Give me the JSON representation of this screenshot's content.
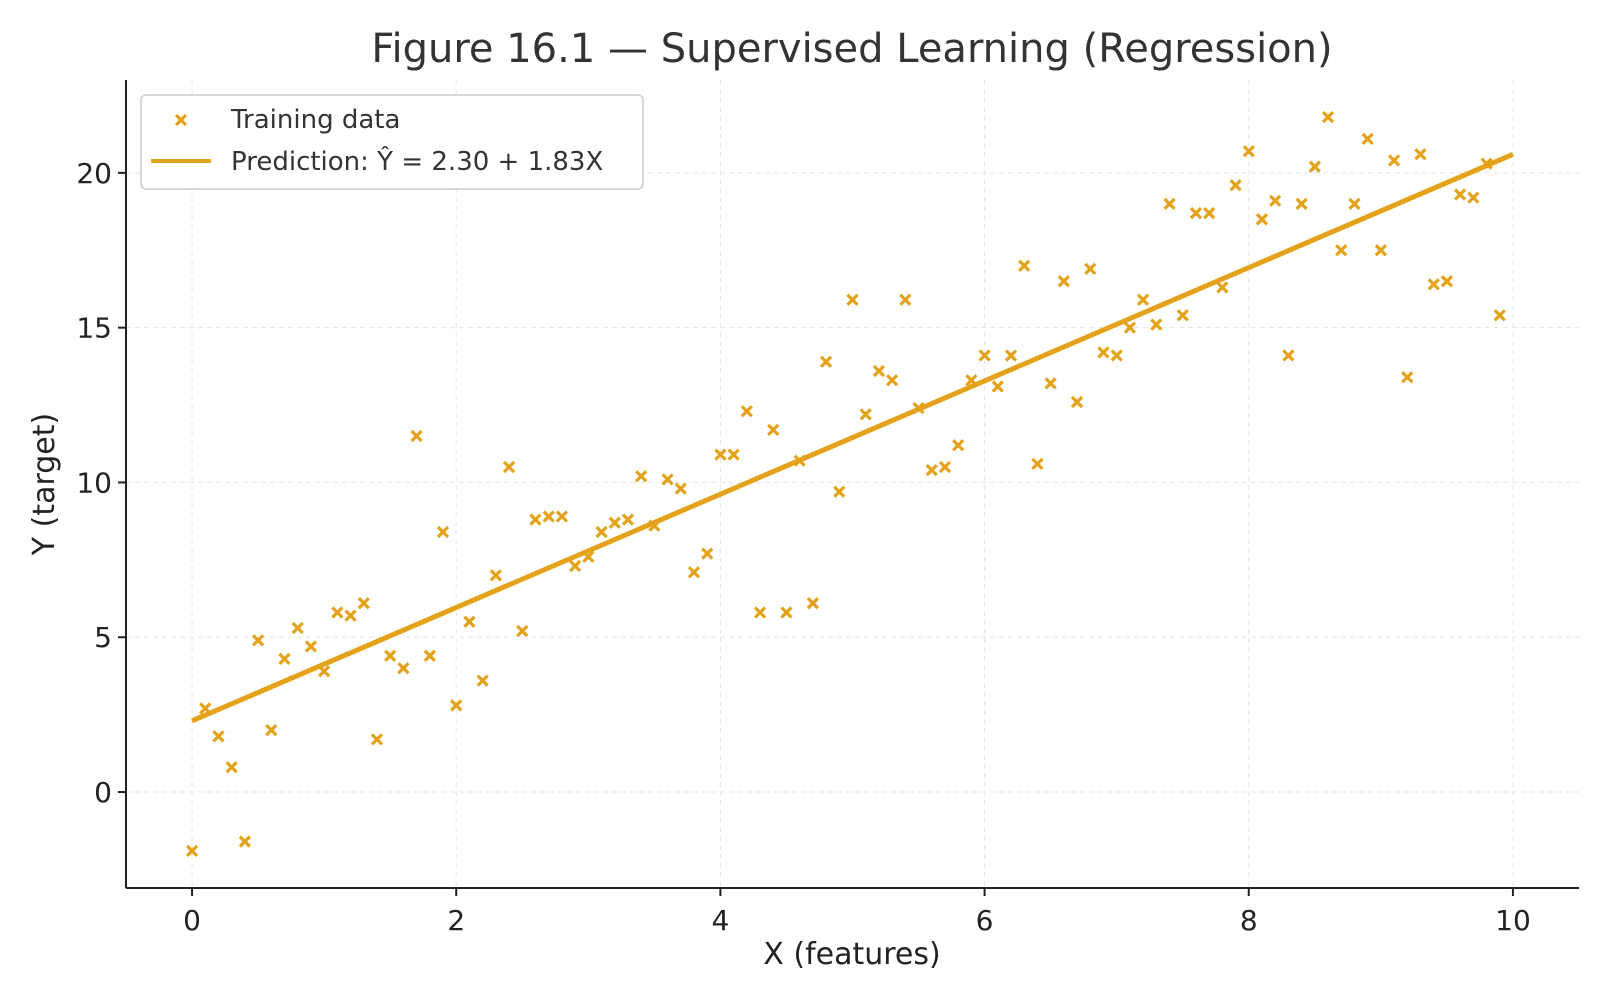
{
  "chart_data": {
    "type": "scatter",
    "title": "Figure 16.1 — Supervised Learning (Regression)",
    "xlabel": "X (features)",
    "ylabel": "Y (target)",
    "xlim": [
      -0.5,
      10.5
    ],
    "ylim": [
      -3.1,
      23
    ],
    "xticks": [
      "0",
      "2",
      "4",
      "6",
      "8",
      "10"
    ],
    "yticks": [
      "0",
      "5",
      "10",
      "15",
      "20"
    ],
    "grid": true,
    "legend_position": "top-left",
    "colors": {
      "points": "#E3A21A",
      "line": "#E3A21A"
    },
    "series": [
      {
        "name": "Training data",
        "kind": "scatter",
        "marker": "x",
        "points": [
          [
            0.0,
            -1.9
          ],
          [
            0.1,
            2.7
          ],
          [
            0.2,
            1.8
          ],
          [
            0.3,
            0.8
          ],
          [
            0.4,
            -1.6
          ],
          [
            0.5,
            4.9
          ],
          [
            0.6,
            2.0
          ],
          [
            0.7,
            4.3
          ],
          [
            0.8,
            5.3
          ],
          [
            0.9,
            4.7
          ],
          [
            1.0,
            3.9
          ],
          [
            1.1,
            5.8
          ],
          [
            1.2,
            5.7
          ],
          [
            1.3,
            6.1
          ],
          [
            1.4,
            1.7
          ],
          [
            1.5,
            4.4
          ],
          [
            1.6,
            4.0
          ],
          [
            1.7,
            11.5
          ],
          [
            1.8,
            4.4
          ],
          [
            1.9,
            8.4
          ],
          [
            2.0,
            2.8
          ],
          [
            2.1,
            5.5
          ],
          [
            2.2,
            3.6
          ],
          [
            2.3,
            7.0
          ],
          [
            2.4,
            10.5
          ],
          [
            2.5,
            5.2
          ],
          [
            2.6,
            8.8
          ],
          [
            2.7,
            8.9
          ],
          [
            2.8,
            8.9
          ],
          [
            2.9,
            7.3
          ],
          [
            3.0,
            7.6
          ],
          [
            3.1,
            8.4
          ],
          [
            3.2,
            8.7
          ],
          [
            3.3,
            8.8
          ],
          [
            3.4,
            10.2
          ],
          [
            3.5,
            8.6
          ],
          [
            3.6,
            10.1
          ],
          [
            3.7,
            9.8
          ],
          [
            3.8,
            7.1
          ],
          [
            3.9,
            7.7
          ],
          [
            4.0,
            10.9
          ],
          [
            4.1,
            10.9
          ],
          [
            4.2,
            12.3
          ],
          [
            4.3,
            5.8
          ],
          [
            4.4,
            11.7
          ],
          [
            4.5,
            5.8
          ],
          [
            4.6,
            10.7
          ],
          [
            4.7,
            6.1
          ],
          [
            4.8,
            13.9
          ],
          [
            4.9,
            9.7
          ],
          [
            5.0,
            15.9
          ],
          [
            5.1,
            12.2
          ],
          [
            5.2,
            13.6
          ],
          [
            5.3,
            13.3
          ],
          [
            5.4,
            15.9
          ],
          [
            5.5,
            12.4
          ],
          [
            5.6,
            10.4
          ],
          [
            5.7,
            10.5
          ],
          [
            5.8,
            11.2
          ],
          [
            5.9,
            13.3
          ],
          [
            6.0,
            14.1
          ],
          [
            6.1,
            13.1
          ],
          [
            6.2,
            14.1
          ],
          [
            6.3,
            17.0
          ],
          [
            6.4,
            10.6
          ],
          [
            6.5,
            13.2
          ],
          [
            6.6,
            16.5
          ],
          [
            6.7,
            12.6
          ],
          [
            6.8,
            16.9
          ],
          [
            6.9,
            14.2
          ],
          [
            7.0,
            14.1
          ],
          [
            7.1,
            15.0
          ],
          [
            7.2,
            15.9
          ],
          [
            7.3,
            15.1
          ],
          [
            7.4,
            19.0
          ],
          [
            7.5,
            15.4
          ],
          [
            7.6,
            18.7
          ],
          [
            7.7,
            18.7
          ],
          [
            7.8,
            16.3
          ],
          [
            7.9,
            19.6
          ],
          [
            8.0,
            20.7
          ],
          [
            8.1,
            18.5
          ],
          [
            8.2,
            19.1
          ],
          [
            8.3,
            14.1
          ],
          [
            8.4,
            19.0
          ],
          [
            8.5,
            20.2
          ],
          [
            8.6,
            21.8
          ],
          [
            8.7,
            17.5
          ],
          [
            8.8,
            19.0
          ],
          [
            8.9,
            21.1
          ],
          [
            9.0,
            17.5
          ],
          [
            9.1,
            20.4
          ],
          [
            9.2,
            13.4
          ],
          [
            9.3,
            20.6
          ],
          [
            9.4,
            16.4
          ],
          [
            9.5,
            16.5
          ],
          [
            9.6,
            19.3
          ],
          [
            9.7,
            19.2
          ],
          [
            9.8,
            20.3
          ],
          [
            9.9,
            15.4
          ]
        ]
      },
      {
        "name": "Prediction: Ŷ = 2.30 + 1.83X",
        "kind": "line",
        "intercept": 2.3,
        "slope": 1.83,
        "x": [
          0,
          10
        ]
      }
    ]
  }
}
